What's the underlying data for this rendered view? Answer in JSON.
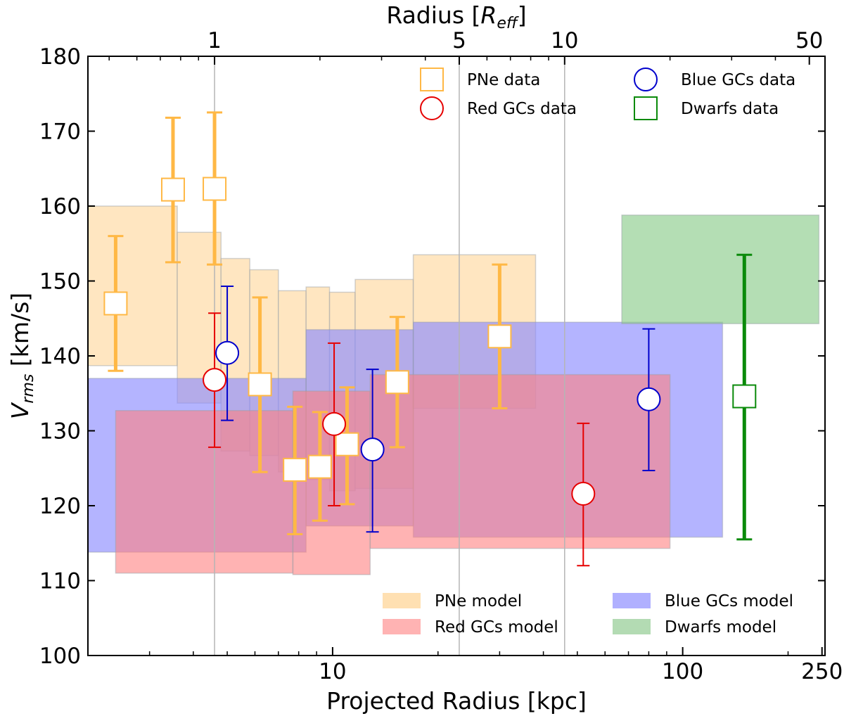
{
  "chart_data": {
    "type": "scatter",
    "title": "",
    "xlabel": "Projected Radius [kpc]",
    "ylabel_base": "V",
    "ylabel_sub": "rms",
    "ylabel_unit": " [km/s]",
    "top_xlabel_base": "Radius [",
    "top_xlabel_R": "R",
    "top_xlabel_sub": "eff",
    "top_xlabel_close": "]",
    "xscale": "log",
    "xlim": [
      2.0,
      255.0
    ],
    "ylim": [
      100,
      180
    ],
    "yticks": [
      100,
      110,
      120,
      130,
      140,
      150,
      160,
      170,
      180
    ],
    "xticks_labeled": [
      {
        "value": 10,
        "label": "10"
      },
      {
        "value": 100,
        "label": "100"
      },
      {
        "value": 250,
        "label": "250"
      }
    ],
    "xticks_minor": [
      2,
      3,
      4,
      5,
      6,
      7,
      8,
      9,
      20,
      30,
      40,
      50,
      60,
      70,
      80,
      90,
      200
    ],
    "top_axis": {
      "reff_kpc": 4.6,
      "ticks": [
        {
          "value": 1,
          "label": "1"
        },
        {
          "value": 5,
          "label": "5"
        },
        {
          "value": 10,
          "label": "10"
        },
        {
          "value": 50,
          "label": "50"
        }
      ],
      "minor": [
        0.5,
        0.6,
        0.7,
        0.8,
        0.9,
        2,
        3,
        4,
        6,
        7,
        8,
        9,
        20,
        30,
        40
      ]
    },
    "gridlines_reff": [
      1,
      5,
      10
    ],
    "model_bands": [
      {
        "name": "PNe model",
        "color": "#ffe0b2",
        "opacity": 0.8,
        "rects": [
          [
            2.0,
            3.6,
            138.7,
            160.0
          ],
          [
            3.6,
            4.8,
            133.7,
            156.5
          ],
          [
            4.8,
            5.8,
            127.3,
            153.0
          ],
          [
            5.8,
            7.0,
            126.7,
            151.5
          ],
          [
            7.0,
            8.4,
            124.5,
            148.7
          ],
          [
            8.4,
            9.8,
            123.5,
            149.2
          ],
          [
            9.8,
            11.6,
            122.0,
            148.5
          ],
          [
            11.6,
            17.0,
            122.3,
            150.2
          ],
          [
            17.0,
            38.0,
            133.0,
            153.5
          ]
        ]
      },
      {
        "name": "Blue GCs model",
        "color": "#8c8cff",
        "opacity": 0.65,
        "rects": [
          [
            2.0,
            8.4,
            113.8,
            137.0
          ],
          [
            8.4,
            17.0,
            117.3,
            143.5
          ],
          [
            17.0,
            130.0,
            115.8,
            144.5
          ]
        ]
      },
      {
        "name": "Red GCs model",
        "color": "#ff8080",
        "opacity": 0.6,
        "rects": [
          [
            2.4,
            7.7,
            111.0,
            132.7
          ],
          [
            7.7,
            12.8,
            110.8,
            135.3
          ],
          [
            12.8,
            92.0,
            114.3,
            137.5
          ]
        ]
      },
      {
        "name": "Dwarfs model",
        "color": "#8ccc8c",
        "opacity": 0.65,
        "rects": [
          [
            67.0,
            245.0,
            144.3,
            158.8
          ]
        ]
      }
    ],
    "series": [
      {
        "name": "PNe data",
        "marker": "square",
        "color": "#ffb845",
        "lw": 5,
        "points": [
          {
            "x": 2.4,
            "y": 147.0,
            "lo": 138.0,
            "hi": 156.0
          },
          {
            "x": 3.5,
            "y": 162.2,
            "lo": 152.5,
            "hi": 171.8
          },
          {
            "x": 4.6,
            "y": 162.3,
            "lo": 152.2,
            "hi": 172.5
          },
          {
            "x": 6.2,
            "y": 136.2,
            "lo": 124.5,
            "hi": 147.8
          },
          {
            "x": 7.8,
            "y": 124.8,
            "lo": 116.2,
            "hi": 133.2
          },
          {
            "x": 9.2,
            "y": 125.2,
            "lo": 118.0,
            "hi": 132.5
          },
          {
            "x": 11.0,
            "y": 128.2,
            "lo": 120.2,
            "hi": 135.8
          },
          {
            "x": 15.3,
            "y": 136.5,
            "lo": 127.8,
            "hi": 145.2
          },
          {
            "x": 30.0,
            "y": 142.6,
            "lo": 133.0,
            "hi": 152.2
          }
        ]
      },
      {
        "name": "Red GCs data",
        "marker": "circle",
        "color": "#e60000",
        "lw": 2,
        "points": [
          {
            "x": 4.6,
            "y": 136.8,
            "lo": 127.8,
            "hi": 145.7
          },
          {
            "x": 10.1,
            "y": 130.9,
            "lo": 120.0,
            "hi": 141.7
          },
          {
            "x": 52.0,
            "y": 121.6,
            "lo": 112.0,
            "hi": 131.0
          }
        ]
      },
      {
        "name": "Blue GCs data",
        "marker": "circle",
        "color": "#0000cc",
        "lw": 2,
        "points": [
          {
            "x": 5.0,
            "y": 140.4,
            "lo": 131.4,
            "hi": 149.3
          },
          {
            "x": 13.0,
            "y": 127.5,
            "lo": 116.5,
            "hi": 138.2
          },
          {
            "x": 80.0,
            "y": 134.2,
            "lo": 124.7,
            "hi": 143.6
          }
        ]
      },
      {
        "name": "Dwarfs data",
        "marker": "square",
        "color": "#0a8a0a",
        "lw": 5,
        "points": [
          {
            "x": 150.0,
            "y": 134.6,
            "lo": 115.5,
            "hi": 153.5
          }
        ]
      }
    ],
    "legend_data": [
      {
        "label": "PNe data",
        "marker": "square",
        "color": "#ffb845",
        "position": "top-left"
      },
      {
        "label": "Red GCs data",
        "marker": "circle",
        "color": "#e60000",
        "position": "top-left"
      },
      {
        "label": "Blue GCs data",
        "marker": "circle",
        "color": "#0000cc",
        "position": "top-right"
      },
      {
        "label": "Dwarfs data",
        "marker": "square",
        "color": "#0a8a0a",
        "position": "top-right"
      }
    ],
    "legend_model": [
      {
        "label": "PNe model",
        "color": "#ffe0b2",
        "position": "bottom-left"
      },
      {
        "label": "Red GCs model",
        "color": "#ffb3b3",
        "position": "bottom-left"
      },
      {
        "label": "Blue GCs model",
        "color": "#b0b0ff",
        "position": "bottom-right"
      },
      {
        "label": "Dwarfs model",
        "color": "#b3dbb3",
        "position": "bottom-right"
      }
    ]
  }
}
